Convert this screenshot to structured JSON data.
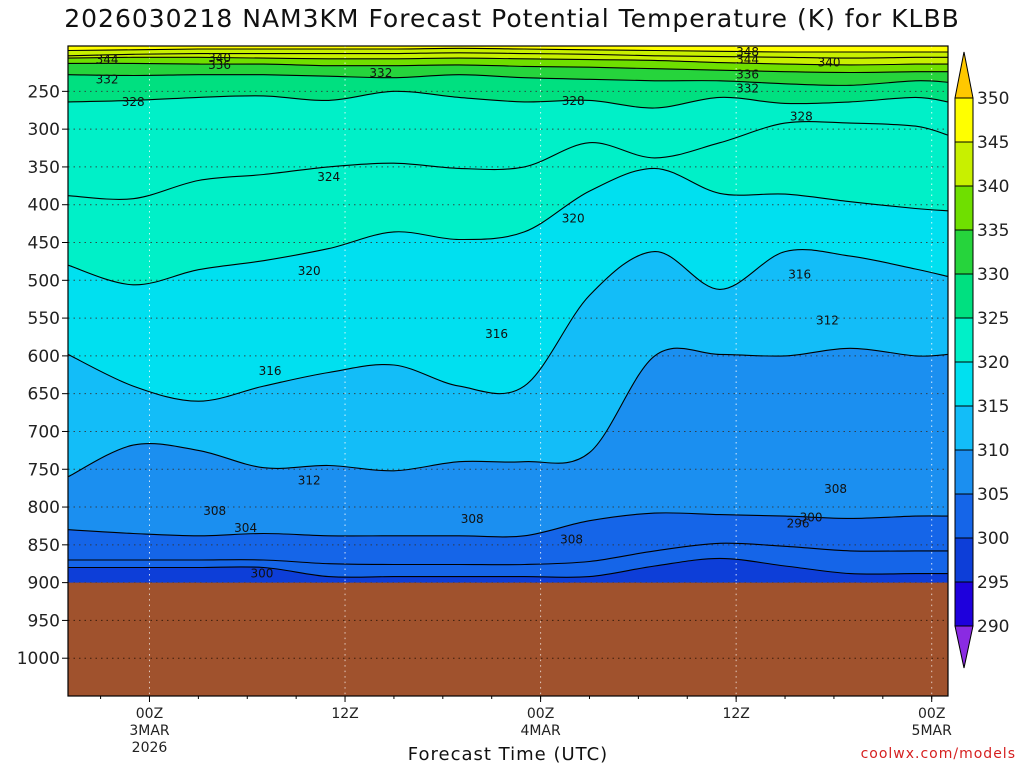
{
  "title": "2026030218 NAM3KM Forecast Potential Temperature (K) for KLBB",
  "xlabel": "Forecast Time (UTC)",
  "credit": "coolwx.com/models",
  "chart_data": {
    "type": "heatmap",
    "title": "2026030218 NAM3KM Forecast Potential Temperature (K) for KLBB",
    "xlabel": "Forecast Time (UTC)",
    "ylabel": "",
    "y_axis": "pressure (hPa), reversed",
    "ylim": [
      1050,
      190
    ],
    "yticks": [
      250,
      300,
      350,
      400,
      450,
      500,
      550,
      600,
      650,
      700,
      750,
      800,
      850,
      900,
      950,
      1000
    ],
    "xlim": [
      -5,
      49
    ],
    "xticks": [
      {
        "hour": 0,
        "lines": [
          "00Z",
          "3MAR",
          "2026"
        ]
      },
      {
        "hour": 12,
        "lines": [
          "12Z"
        ]
      },
      {
        "hour": 24,
        "lines": [
          "00Z",
          "4MAR"
        ]
      },
      {
        "hour": 36,
        "lines": [
          "12Z"
        ]
      },
      {
        "hour": 48,
        "lines": [
          "00Z",
          "5MAR"
        ]
      }
    ],
    "grid": true,
    "surface_pressure": 900,
    "colorbar": {
      "levels": [
        290,
        295,
        300,
        305,
        310,
        315,
        320,
        325,
        330,
        335,
        340,
        345,
        350
      ],
      "labels": [
        "290",
        "295",
        "300",
        "305",
        "310",
        "315",
        "320",
        "325",
        "330",
        "335",
        "340",
        "345",
        "350"
      ],
      "colors": [
        "#8a2be2",
        "#1e00dc",
        "#0d3ed8",
        "#1565e8",
        "#1b8ff0",
        "#13bdf8",
        "#00e0f0",
        "#00f0c8",
        "#00e080",
        "#26d43c",
        "#6fdf00",
        "#c8f000",
        "#ffff00",
        "#ffc800"
      ]
    },
    "contours": [
      {
        "level": 300,
        "pressure": [
          880,
          880,
          880,
          880,
          892,
          892,
          892,
          892,
          892,
          878,
          868,
          878,
          888,
          888,
          888
        ]
      },
      {
        "level": 304,
        "pressure": [
          870,
          870,
          870,
          870,
          875,
          876,
          876,
          876,
          872,
          858,
          848,
          852,
          858,
          858,
          858
        ]
      },
      {
        "level": 308,
        "pressure": [
          830,
          835,
          838,
          835,
          838,
          838,
          838,
          838,
          818,
          808,
          810,
          812,
          815,
          812,
          812
        ]
      },
      {
        "level": 312,
        "pressure": [
          760,
          718,
          725,
          748,
          745,
          752,
          740,
          740,
          728,
          600,
          598,
          600,
          590,
          600,
          598
        ]
      },
      {
        "level": 316,
        "pressure": [
          598,
          640,
          660,
          640,
          622,
          612,
          640,
          640,
          520,
          462,
          512,
          462,
          468,
          485,
          495
        ]
      },
      {
        "level": 320,
        "pressure": [
          480,
          506,
          486,
          474,
          458,
          436,
          446,
          436,
          382,
          352,
          385,
          386,
          396,
          405,
          408
        ]
      },
      {
        "level": 324,
        "pressure": [
          388,
          392,
          368,
          360,
          350,
          345,
          352,
          350,
          318,
          338,
          318,
          292,
          292,
          296,
          308
        ]
      },
      {
        "level": 328,
        "pressure": [
          264,
          262,
          258,
          256,
          262,
          250,
          258,
          264,
          262,
          272,
          258,
          266,
          264,
          258,
          264
        ]
      },
      {
        "level": 332,
        "pressure": [
          228,
          229,
          228,
          228,
          230,
          232,
          228,
          232,
          234,
          236,
          236,
          240,
          242,
          236,
          238
        ]
      },
      {
        "level": 336,
        "pressure": [
          213,
          213,
          214,
          214,
          216,
          216,
          215,
          217,
          218,
          220,
          222,
          224,
          225,
          224,
          224
        ]
      },
      {
        "level": 340,
        "pressure": [
          206,
          205,
          205,
          206,
          207,
          207,
          206,
          207,
          208,
          209,
          212,
          214,
          215,
          214,
          214
        ]
      },
      {
        "level": 344,
        "pressure": [
          203,
          201,
          200,
          200,
          200,
          200,
          199,
          200,
          201,
          203,
          204,
          205,
          206,
          205,
          205
        ]
      },
      {
        "level": 348,
        "pressure": [
          196,
          195,
          194,
          194,
          194,
          194,
          193,
          194,
          195,
          196,
          197,
          198,
          198,
          198,
          198
        ]
      }
    ],
    "contour_hours": [
      -5,
      -1,
      3,
      7,
      11,
      15,
      19,
      23,
      27,
      31,
      35,
      39,
      43,
      47,
      49
    ],
    "contour_labels": [
      {
        "text": "344",
        "hour": -2.6,
        "pressure": 208
      },
      {
        "text": "340",
        "hour": 4.3,
        "pressure": 206
      },
      {
        "text": "336",
        "hour": 4.3,
        "pressure": 215
      },
      {
        "text": "332",
        "hour": -2.6,
        "pressure": 234
      },
      {
        "text": "332",
        "hour": 14.2,
        "pressure": 226
      },
      {
        "text": "328",
        "hour": -1.0,
        "pressure": 264
      },
      {
        "text": "348",
        "hour": 36.7,
        "pressure": 198
      },
      {
        "text": "344",
        "hour": 36.7,
        "pressure": 208
      },
      {
        "text": "340",
        "hour": 41.7,
        "pressure": 212
      },
      {
        "text": "336",
        "hour": 36.7,
        "pressure": 228
      },
      {
        "text": "332",
        "hour": 36.7,
        "pressure": 246
      },
      {
        "text": "328",
        "hour": 26.0,
        "pressure": 263
      },
      {
        "text": "328",
        "hour": 40.0,
        "pressure": 283
      },
      {
        "text": "324",
        "hour": 11.0,
        "pressure": 363
      },
      {
        "text": "320",
        "hour": 26.0,
        "pressure": 418
      },
      {
        "text": "320",
        "hour": 9.8,
        "pressure": 488
      },
      {
        "text": "316",
        "hour": 39.9,
        "pressure": 492
      },
      {
        "text": "316",
        "hour": 21.3,
        "pressure": 571
      },
      {
        "text": "312",
        "hour": 41.6,
        "pressure": 553
      },
      {
        "text": "316",
        "hour": 7.4,
        "pressure": 620
      },
      {
        "text": "312",
        "hour": 9.8,
        "pressure": 765
      },
      {
        "text": "308",
        "hour": 4.0,
        "pressure": 805
      },
      {
        "text": "304",
        "hour": 5.9,
        "pressure": 828
      },
      {
        "text": "308",
        "hour": 19.8,
        "pressure": 816
      },
      {
        "text": "300",
        "hour": 6.9,
        "pressure": 888
      },
      {
        "text": "308",
        "hour": 25.9,
        "pressure": 843
      },
      {
        "text": "308",
        "hour": 42.1,
        "pressure": 776
      },
      {
        "text": "296",
        "hour": 39.8,
        "pressure": 822
      },
      {
        "text": "300",
        "hour": 40.6,
        "pressure": 814
      }
    ]
  }
}
